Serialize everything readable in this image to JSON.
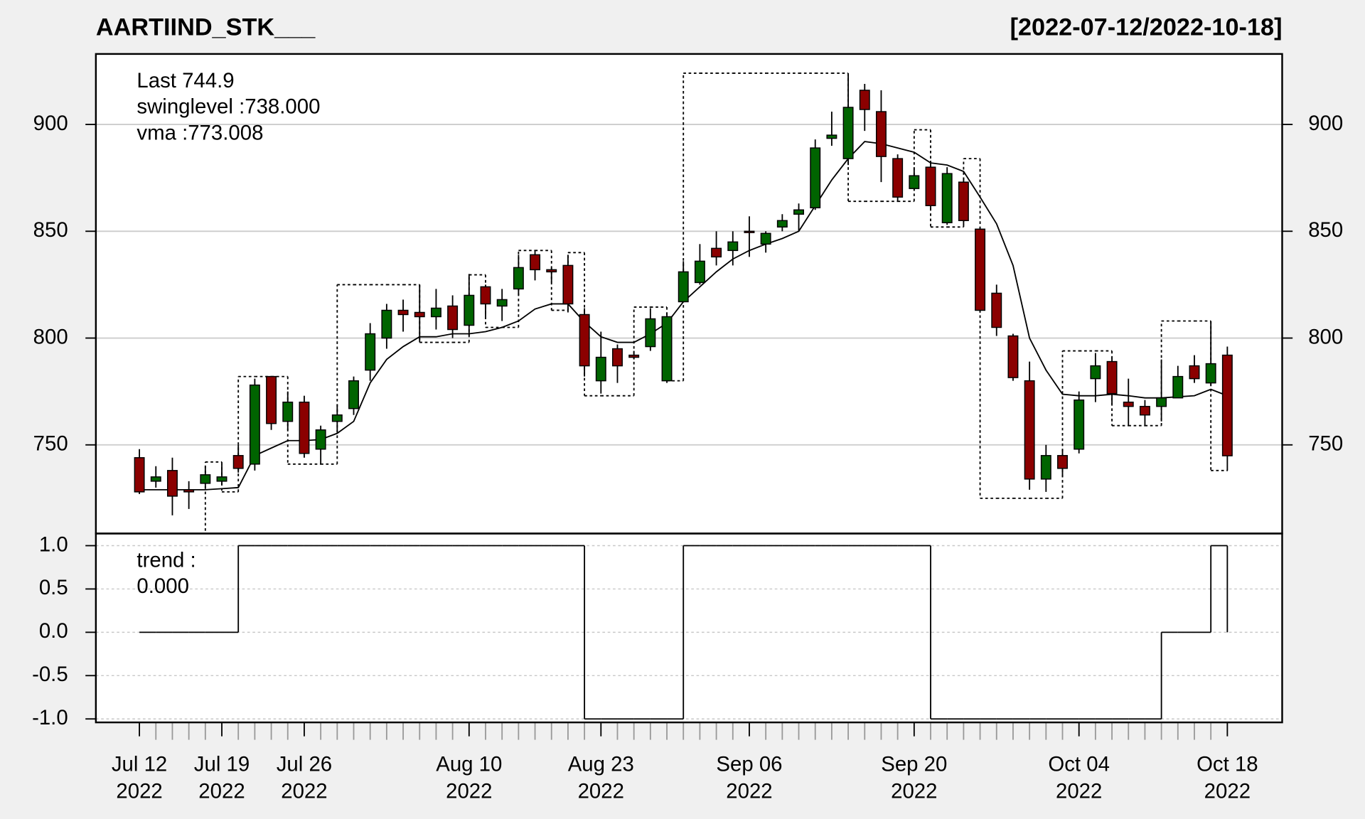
{
  "chart_data": [
    {
      "type": "candlestick",
      "title": "AARTIIND_STK___",
      "subtitle": "[2022-07-12/2022-10-18]",
      "categories": [
        "Jul 12\n2022",
        null,
        null,
        null,
        null,
        "Jul 19\n2022",
        null,
        null,
        null,
        null,
        "Jul 26\n2022",
        null,
        null,
        null,
        null,
        null,
        null,
        null,
        null,
        null,
        "Aug 10\n2022",
        null,
        null,
        null,
        null,
        null,
        null,
        null,
        "Aug 23\n2022",
        null,
        null,
        null,
        null,
        null,
        null,
        null,
        null,
        "Sep 06\n2022",
        null,
        null,
        null,
        null,
        null,
        null,
        null,
        null,
        null,
        "Sep 20\n2022",
        null,
        null,
        null,
        null,
        null,
        null,
        null,
        null,
        null,
        "Oct 04\n2022",
        null,
        null,
        null,
        null,
        null,
        null,
        null,
        null,
        "Oct 18\n2022"
      ],
      "open": [
        744,
        733,
        738,
        729,
        732,
        733,
        745,
        741,
        782,
        761,
        770,
        748,
        761,
        767,
        785,
        800,
        813,
        812,
        810,
        815,
        806,
        824,
        815,
        823,
        839,
        832,
        834,
        811,
        780,
        795,
        792,
        796,
        780,
        817,
        826,
        842,
        841,
        850,
        844,
        852,
        858,
        861,
        893.5,
        884,
        916,
        906,
        884,
        870,
        880,
        854,
        873,
        851,
        821,
        801,
        780,
        734,
        745,
        748,
        781,
        789,
        770,
        768,
        768,
        772,
        787,
        779,
        792
      ],
      "high": [
        748,
        740,
        744,
        733,
        740,
        741,
        750,
        781,
        782,
        775,
        773,
        759,
        769,
        782,
        807,
        816,
        818,
        825,
        823,
        820,
        830,
        825,
        823,
        839,
        841,
        833,
        839,
        814,
        803,
        797,
        794,
        814,
        812,
        836,
        844,
        850,
        850,
        857,
        850,
        858,
        863,
        893,
        906,
        924,
        919,
        916,
        886,
        880,
        883,
        880,
        875,
        852,
        825,
        802,
        789,
        750,
        748,
        775,
        793,
        791,
        781,
        771,
        790,
        787,
        792,
        808,
        796
      ],
      "low": [
        727,
        730,
        717,
        720,
        730,
        731,
        737,
        738,
        757,
        757,
        744,
        741,
        756,
        764,
        780,
        795,
        803,
        798,
        804,
        800,
        801,
        810,
        808,
        820,
        827,
        826,
        812,
        782,
        774,
        779,
        790,
        794,
        779,
        817,
        825,
        834,
        834,
        838,
        840,
        850,
        850,
        860,
        890,
        881,
        897,
        873,
        864,
        869,
        860,
        853,
        853,
        812,
        801,
        780,
        729,
        728,
        735,
        746,
        770,
        769,
        759,
        759,
        761,
        772,
        779,
        778,
        738
      ],
      "close": [
        728,
        735,
        726,
        728,
        736,
        735,
        739,
        778,
        760,
        770,
        746,
        757,
        764,
        780,
        802,
        813,
        811,
        810,
        814,
        804,
        820,
        816,
        818,
        833,
        832,
        831,
        816,
        787,
        791,
        787,
        791,
        809,
        810,
        831,
        836,
        838,
        845,
        850,
        849,
        855,
        860,
        889,
        895,
        908,
        907,
        885,
        866,
        876,
        862,
        877,
        855,
        813,
        805,
        781.5,
        734,
        745,
        739,
        771,
        787,
        774,
        768,
        764,
        772,
        782,
        781,
        788,
        744.9
      ],
      "up_color": "#006400",
      "down_color": "#8b0000",
      "last_label": "Last 744.9",
      "last_label_color": "#8b0000",
      "overlays": [
        {
          "name": "swinglevel :738.000",
          "style": "dotted",
          "color": "#000000",
          "values": [
            null,
            null,
            null,
            700,
            742,
            728,
            782,
            782,
            782,
            741,
            741,
            741,
            825,
            825,
            825,
            825,
            825,
            798,
            798,
            798,
            829.6,
            805,
            805,
            841,
            841,
            813,
            840,
            773,
            773,
            773,
            814.5,
            814.5,
            780,
            924,
            924,
            924,
            924,
            924,
            924,
            924,
            924,
            924,
            924,
            864,
            864,
            864,
            864,
            897.5,
            852,
            852,
            884,
            725,
            725,
            725,
            725,
            725,
            794,
            794,
            794,
            759,
            759,
            759,
            808,
            808,
            808,
            738,
            738
          ]
        },
        {
          "name": "vma :773.008",
          "style": "solid",
          "color": "#000000",
          "values": [
            729,
            729,
            729,
            729,
            729,
            729.5,
            730,
            745,
            748.5,
            752,
            752,
            752.5,
            755.4,
            761,
            779,
            790,
            796,
            800.6,
            800.6,
            802,
            802,
            803,
            805,
            808,
            813.6,
            816,
            816,
            807.5,
            800.6,
            798,
            798,
            802,
            807,
            817,
            824,
            831,
            837,
            841,
            844,
            846.6,
            850,
            862,
            874,
            884,
            892,
            891,
            889,
            887,
            882,
            881,
            878,
            866,
            853.5,
            834,
            800,
            785,
            773.7,
            773,
            773,
            773.7,
            773,
            772,
            772,
            772.5,
            773,
            776,
            773.008
          ]
        }
      ],
      "ylim": [
        708.5,
        933
      ],
      "yticks": [
        750,
        800,
        850,
        900
      ],
      "grid": true
    },
    {
      "type": "step",
      "series": [
        {
          "name": "trend :",
          "last_label": "0.000",
          "color": "#000000",
          "values": [
            0,
            0,
            0,
            0,
            0,
            0,
            1,
            1,
            1,
            1,
            1,
            1,
            1,
            1,
            1,
            1,
            1,
            1,
            1,
            1,
            1,
            1,
            1,
            1,
            1,
            1,
            1,
            -1,
            -1,
            -1,
            -1,
            -1,
            -1,
            1,
            1,
            1,
            1,
            1,
            1,
            1,
            1,
            1,
            1,
            1,
            1,
            1,
            1,
            1,
            -1,
            -1,
            -1,
            -1,
            -1,
            -1,
            -1,
            -1,
            -1,
            -1,
            -1,
            -1,
            -1,
            -1,
            0,
            0,
            0,
            1,
            0
          ]
        }
      ],
      "ylim": [
        -1.04,
        1.14
      ],
      "yticks": [
        {
          "value": 1,
          "label": "1.0"
        },
        {
          "value": 0.5,
          "label": "0.5"
        },
        {
          "value": 0,
          "label": "0.0"
        },
        {
          "value": -0.5,
          "label": "-0.5"
        },
        {
          "value": -1,
          "label": "-1.0"
        }
      ],
      "grid": true
    }
  ]
}
